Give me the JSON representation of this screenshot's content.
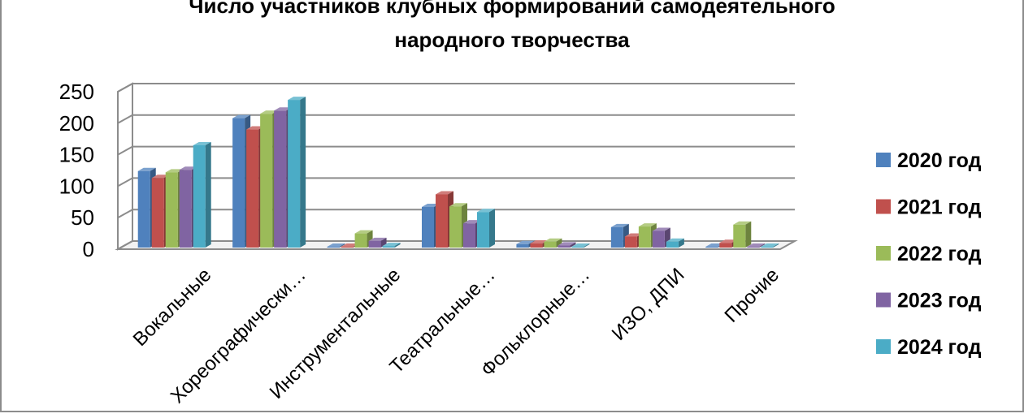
{
  "chart_data": {
    "type": "bar",
    "title_lines": [
      "Число участников клубных формирований самодеятельного",
      "народного творчества"
    ],
    "categories": [
      "Вокальные",
      "Хореографически…",
      "Инструментальные",
      "Театральные…",
      "Фольклорные…",
      "ИЗО, ДПИ",
      "Прочие"
    ],
    "series": [
      {
        "name": "2020 год",
        "color": "#4f81bd",
        "values": [
          124,
          208,
          0,
          67,
          8,
          35,
          0
        ]
      },
      {
        "name": "2021 год",
        "color": "#c0504d",
        "values": [
          113,
          190,
          1,
          87,
          9,
          20,
          10
        ]
      },
      {
        "name": "2022 год",
        "color": "#9bbb59",
        "values": [
          122,
          215,
          25,
          68,
          12,
          36,
          39
        ]
      },
      {
        "name": "2023 год",
        "color": "#8064a2",
        "values": [
          126,
          220,
          13,
          41,
          6,
          29,
          1
        ]
      },
      {
        "name": "2024 год",
        "color": "#4bacc6",
        "values": [
          165,
          237,
          5,
          59,
          1,
          12,
          0
        ]
      }
    ],
    "y_ticks": [
      "0",
      "50",
      "100",
      "150",
      "200",
      "250"
    ],
    "ylim": [
      0,
      250
    ],
    "grid": true,
    "legend_position": "right",
    "threeD": true
  }
}
